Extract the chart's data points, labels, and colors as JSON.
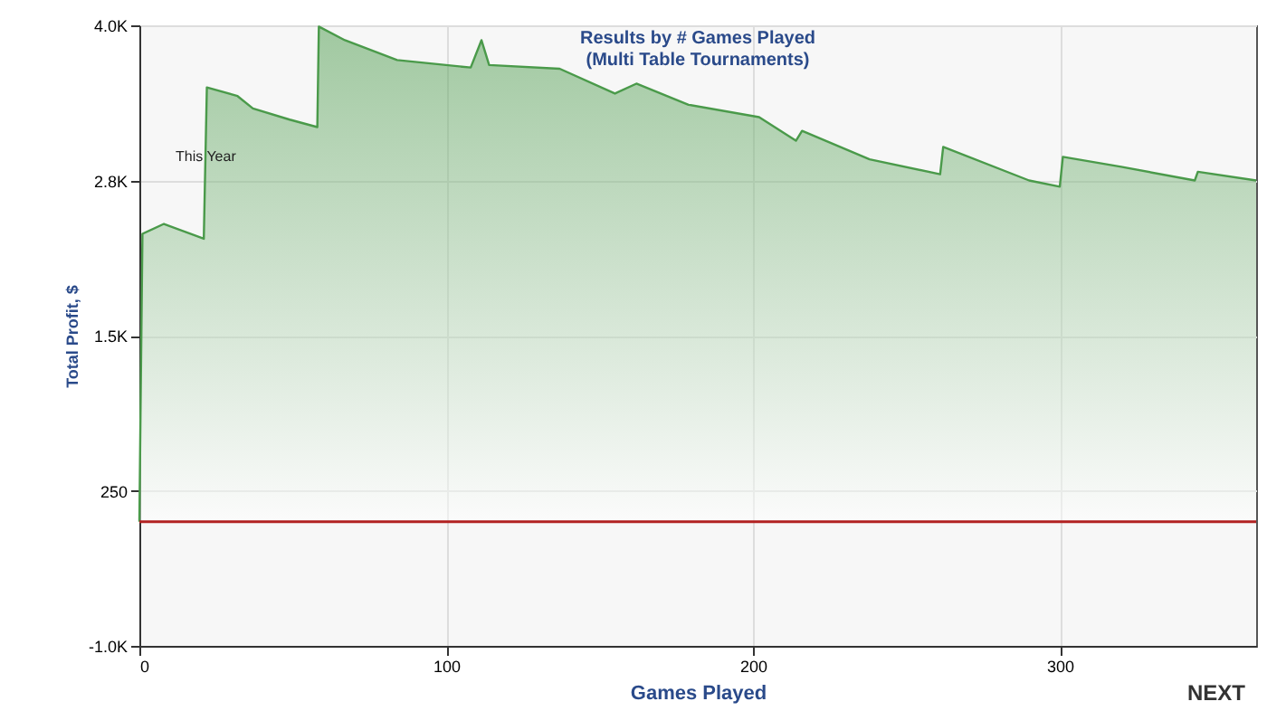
{
  "chart_data": {
    "type": "area",
    "title": "Results by # Games Played",
    "subtitle": "(Multi Table Tournaments)",
    "xlabel": "Games Played",
    "ylabel": "Total Profit, $",
    "annotations": [
      "This Year",
      "NEXT"
    ],
    "x": [
      0,
      1,
      8,
      21,
      22,
      32,
      37,
      49,
      58,
      58.5,
      67,
      84,
      108,
      111.5,
      114,
      137,
      155,
      162,
      179,
      202,
      214,
      216,
      238,
      261,
      262,
      290,
      300,
      301,
      320,
      344,
      345,
      364
    ],
    "series": [
      {
        "color": "#4a9a4a",
        "values": [
          0,
          2320,
          2400,
          2280,
          3500,
          3430,
          3330,
          3240,
          3180,
          3990,
          3880,
          3720,
          3660,
          3880,
          3680,
          3650,
          3450,
          3530,
          3360,
          3260,
          3070,
          3150,
          2920,
          2800,
          3020,
          2750,
          2700,
          2940,
          2860,
          2750,
          2820,
          2750
        ]
      }
    ],
    "xlim": [
      0,
      364
    ],
    "xticks": [
      0,
      100,
      200,
      300
    ],
    "ylim": [
      -1000,
      4000
    ],
    "yticks": [
      {
        "value": -1000,
        "label": "-1.0K"
      },
      250,
      {
        "value": 1500,
        "label": "1.5K"
      },
      {
        "value": 2750,
        "label": "2.8K"
      },
      {
        "value": 4000,
        "label": "4.0K"
      }
    ],
    "ref_lines": [
      {
        "axis": "y",
        "value": 0,
        "color": "#b22222"
      }
    ],
    "grid": true,
    "marker": "none",
    "line_style": "solid"
  }
}
